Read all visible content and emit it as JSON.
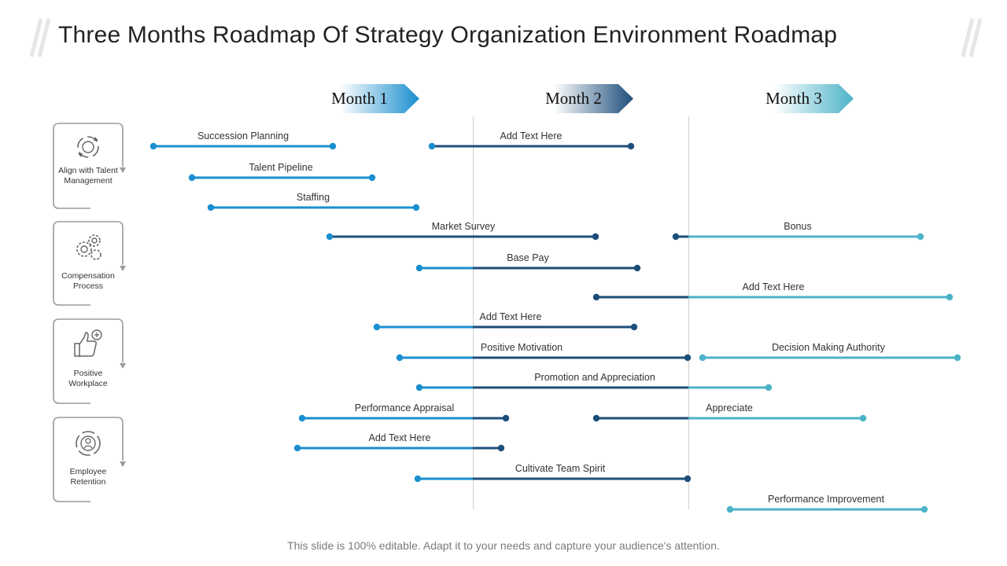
{
  "title": "Three Months Roadmap Of Strategy Organization Environment Roadmap",
  "footer": "This slide is 100% editable. Adapt it to your needs and capture your audience's attention.",
  "colors": {
    "month1": "#1a8fcf",
    "month2": "#1d4e7a",
    "month3": "#4bb2c8",
    "frame": "#9a9a9a"
  },
  "months": [
    {
      "label": "Month 1"
    },
    {
      "label": "Month 2"
    },
    {
      "label": "Month 3"
    }
  ],
  "categories": [
    {
      "label": "Align with Talent Management",
      "icon": "recycle-arrows-icon"
    },
    {
      "label": "Compensation Process",
      "icon": "gears-icon"
    },
    {
      "label": "Positive Workplace",
      "icon": "thumbs-up-plus-icon"
    },
    {
      "label": "Employee Retention",
      "icon": "people-cycle-icon"
    }
  ],
  "tasks": [
    {
      "label": "Succession Planning"
    },
    {
      "label": "Add Text Here"
    },
    {
      "label": "Talent Pipeline"
    },
    {
      "label": "Staffing"
    },
    {
      "label": "Market Survey"
    },
    {
      "label": "Bonus"
    },
    {
      "label": "Base Pay"
    },
    {
      "label": "Add Text Here"
    },
    {
      "label": "Add Text Here"
    },
    {
      "label": "Positive Motivation"
    },
    {
      "label": "Decision Making Authority"
    },
    {
      "label": "Promotion and Appreciation"
    },
    {
      "label": "Performance  Appraisal"
    },
    {
      "label": "Appreciate"
    },
    {
      "label": "Add Text Here"
    },
    {
      "label": "Cultivate Team Spirit"
    },
    {
      "label": "Performance  Improvement"
    }
  ]
}
